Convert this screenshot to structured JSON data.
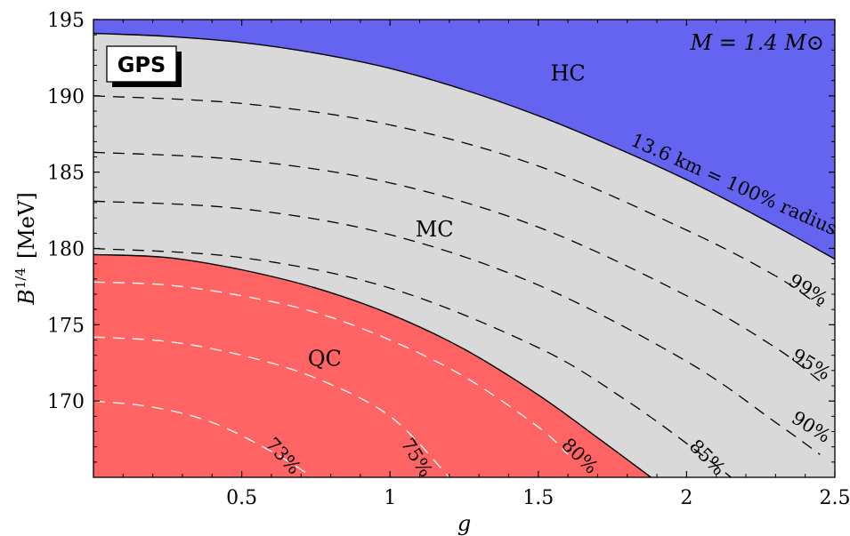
{
  "chart_data": {
    "type": "area",
    "xlabel": "g",
    "ylabel_main": "B",
    "ylabel_sup": "1/4",
    "ylabel_unit": "[MeV]",
    "xlim": [
      0,
      2.5
    ],
    "ylim": [
      165,
      195
    ],
    "xticks": [
      "0.5",
      "1",
      "1.5",
      "2",
      "2.5"
    ],
    "yticks": [
      "170",
      "175",
      "180",
      "185",
      "190",
      "195"
    ],
    "xtick_values": [
      0.5,
      1,
      1.5,
      2,
      2.5
    ],
    "ytick_values": [
      170,
      175,
      180,
      185,
      190,
      195
    ],
    "grid": false,
    "badge": "GPS",
    "mass_label": "M = 1.4 M⊙",
    "colors": {
      "hc": "#6464f0",
      "mc": "#d9d9d9",
      "qc": "#ff6464",
      "white_dash": "#ffffff",
      "black_dash": "#000000"
    },
    "regions": [
      {
        "label": "HC",
        "x": 1.6,
        "y": 191
      },
      {
        "label": "MC",
        "x": 1.15,
        "y": 180.8
      },
      {
        "label": "QC",
        "x": 0.78,
        "y": 172.3
      }
    ],
    "hc_boundary": {
      "label": "13.6 km = 100% radius",
      "x": [
        0,
        0.25,
        0.5,
        0.75,
        1.0,
        1.25,
        1.5,
        1.75,
        2.0,
        2.25,
        2.5
      ],
      "y": [
        194.1,
        193.9,
        193.5,
        192.8,
        191.8,
        190.4,
        188.7,
        186.7,
        184.5,
        182.0,
        179.3
      ]
    },
    "qc_boundary": {
      "label": "80%",
      "x": [
        0,
        0.25,
        0.5,
        0.75,
        1.0,
        1.25,
        1.5,
        1.7,
        1.88
      ],
      "y": [
        179.6,
        179.4,
        178.6,
        177.4,
        175.7,
        173.4,
        170.4,
        167.6,
        165
      ]
    },
    "contours_white": [
      {
        "label": "73%",
        "x": [
          0,
          0.2,
          0.4,
          0.6,
          0.74
        ],
        "y": [
          170.0,
          169.6,
          168.6,
          166.7,
          165
        ]
      },
      {
        "label": "75%",
        "x": [
          0,
          0.25,
          0.5,
          0.75,
          1.0,
          1.2
        ],
        "y": [
          174.2,
          173.9,
          173.0,
          171.5,
          169.0,
          165
        ]
      },
      {
        "label": "",
        "x": [
          0,
          0.25,
          0.5,
          0.75,
          1.0,
          1.25,
          1.5,
          1.6
        ],
        "y": [
          177.8,
          177.6,
          176.9,
          175.8,
          174.0,
          171.6,
          168.3,
          166.5
        ]
      }
    ],
    "contours_black": [
      {
        "label": "85%",
        "x": [
          0,
          0.5,
          1.0,
          1.5,
          1.8,
          2.05,
          2.15
        ],
        "y": [
          180.0,
          179.4,
          177.4,
          173.5,
          170.0,
          166.5,
          165
        ]
      },
      {
        "label": "90%",
        "x": [
          0,
          0.5,
          1.0,
          1.5,
          2.0,
          2.3,
          2.45
        ],
        "y": [
          183.1,
          182.6,
          180.9,
          177.6,
          172.6,
          168.6,
          166.5
        ]
      },
      {
        "label": "95%",
        "x": [
          0,
          0.5,
          1.0,
          1.5,
          2.0,
          2.3,
          2.45
        ],
        "y": [
          186.3,
          185.8,
          184.3,
          181.4,
          176.9,
          173.5,
          171.3
        ]
      },
      {
        "label": "99%",
        "x": [
          0,
          0.5,
          1.0,
          1.5,
          2.0,
          2.3,
          2.45
        ],
        "y": [
          190.0,
          189.5,
          188.1,
          185.4,
          181.2,
          178.2,
          176.2
        ]
      }
    ],
    "contour_labels": [
      {
        "label": "73%",
        "x": 0.64,
        "y": 166.4,
        "rot": 48
      },
      {
        "label": "75%",
        "x": 1.09,
        "y": 166.3,
        "rot": 58
      },
      {
        "label": "80%",
        "x": 1.64,
        "y": 166.4,
        "rot": 44
      },
      {
        "label": "85%",
        "x": 2.07,
        "y": 166.3,
        "rot": 45
      },
      {
        "label": "90%",
        "x": 2.42,
        "y": 168.3,
        "rot": 32
      },
      {
        "label": "95%",
        "x": 2.42,
        "y": 172.4,
        "rot": 32
      },
      {
        "label": "99%",
        "x": 2.41,
        "y": 177.3,
        "rot": 32
      },
      {
        "label": "13.6 km = 100% radius",
        "x": 2.16,
        "y": 184.2,
        "rot": 24
      }
    ]
  }
}
